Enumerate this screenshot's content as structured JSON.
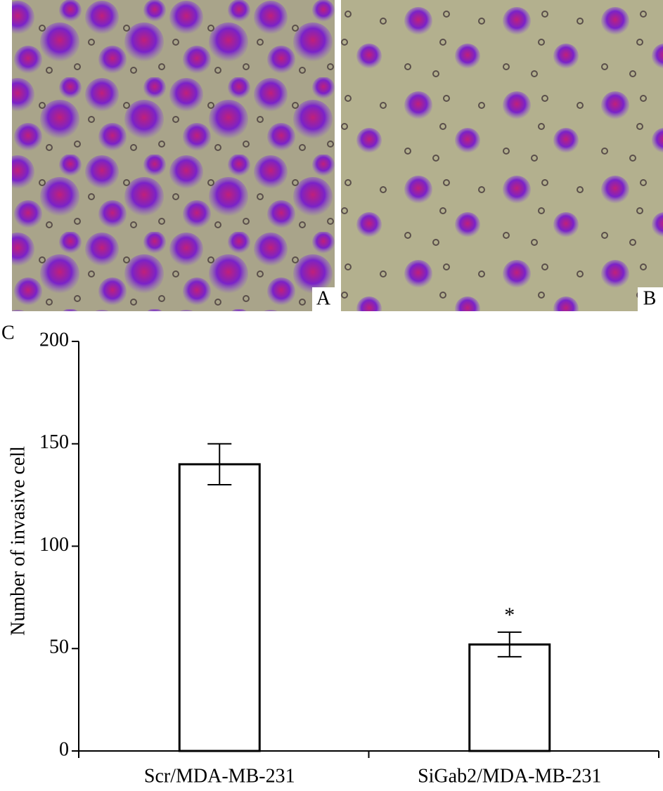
{
  "panels": [
    {
      "label": "A"
    },
    {
      "label": "B"
    }
  ],
  "chart_label": "C",
  "chart_data": {
    "type": "bar",
    "ylabel": "Number of invasive cell",
    "categories": [
      "Scr/MDA-MB-231",
      "SiGab2/MDA-MB-231"
    ],
    "values": [
      140,
      52
    ],
    "errors": [
      10,
      6
    ],
    "annotation": "*",
    "color": "#ffffff",
    "edge_color": "#000000",
    "ylim": [
      0,
      200
    ],
    "yticks": [
      0,
      50,
      100,
      150,
      200
    ]
  }
}
